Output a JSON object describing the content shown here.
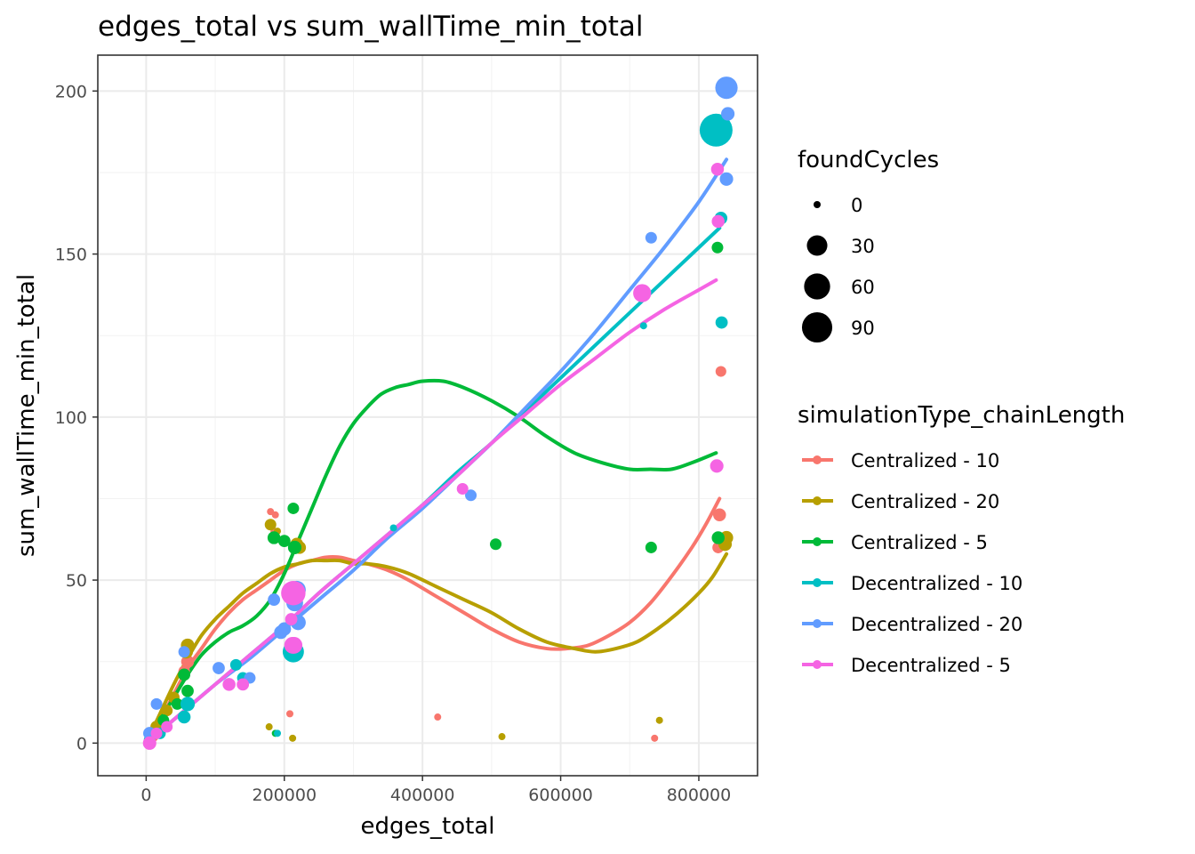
{
  "chart_data": {
    "type": "scatter",
    "title": "edges_total  vs  sum_wallTime_min_total",
    "xlabel": "edges_total",
    "ylabel": "sum_wallTime_min_total",
    "xlim": [
      -70000,
      885000
    ],
    "ylim": [
      -10,
      211
    ],
    "x_ticks": [
      0,
      200000,
      400000,
      600000,
      800000
    ],
    "x_tick_labels": [
      "0",
      "200000",
      "400000",
      "600000",
      "800000"
    ],
    "y_ticks": [
      0,
      50,
      100,
      150,
      200
    ],
    "y_tick_labels": [
      "0",
      "50",
      "100",
      "150",
      "200"
    ],
    "grid": true,
    "legend_position": "right",
    "size_legend": {
      "title": "foundCycles",
      "entries": [
        {
          "label": "0",
          "value": 0
        },
        {
          "label": "30",
          "value": 30
        },
        {
          "label": "60",
          "value": 60
        },
        {
          "label": "90",
          "value": 90
        }
      ]
    },
    "color_legend": {
      "title": "simulationType_chainLength"
    },
    "series": [
      {
        "name": "Centralized - 10",
        "color": "#F8766D",
        "points": [
          [
            180000,
            71
          ],
          [
            187000,
            70
          ],
          [
            208000,
            9
          ],
          [
            422000,
            8
          ],
          [
            736000,
            1.5
          ],
          [
            830000,
            70
          ],
          [
            832000,
            114
          ],
          [
            828000,
            60
          ],
          [
            185000,
            65
          ],
          [
            215000,
            44
          ],
          [
            60000,
            25
          ],
          [
            55000,
            22
          ],
          [
            20000,
            5
          ],
          [
            5000,
            1
          ],
          [
            10000,
            2
          ]
        ],
        "sizes": [
          0,
          0,
          0,
          0,
          0,
          5,
          2,
          3,
          0,
          2,
          5,
          3,
          3,
          2,
          2
        ],
        "trend": [
          [
            0,
            0
          ],
          [
            20000,
            7
          ],
          [
            40000,
            15
          ],
          [
            60000,
            23
          ],
          [
            80000,
            29
          ],
          [
            100000,
            35
          ],
          [
            120000,
            40
          ],
          [
            140000,
            44
          ],
          [
            160000,
            47
          ],
          [
            180000,
            50
          ],
          [
            200000,
            53
          ],
          [
            220000,
            55
          ],
          [
            240000,
            56
          ],
          [
            260000,
            57
          ],
          [
            280000,
            57
          ],
          [
            300000,
            56
          ],
          [
            320000,
            55
          ],
          [
            350000,
            53
          ],
          [
            380000,
            50
          ],
          [
            420000,
            45
          ],
          [
            460000,
            40
          ],
          [
            500000,
            35
          ],
          [
            540000,
            31
          ],
          [
            580000,
            29
          ],
          [
            610000,
            29
          ],
          [
            640000,
            30
          ],
          [
            670000,
            33
          ],
          [
            700000,
            37
          ],
          [
            730000,
            43
          ],
          [
            760000,
            51
          ],
          [
            790000,
            60
          ],
          [
            810000,
            67
          ],
          [
            830000,
            75
          ]
        ]
      },
      {
        "name": "Centralized - 20",
        "color": "#B79F00",
        "points": [
          [
            180000,
            67
          ],
          [
            190000,
            65
          ],
          [
            212000,
            1.5
          ],
          [
            515000,
            2
          ],
          [
            743000,
            7
          ],
          [
            840000,
            63
          ],
          [
            838000,
            61
          ],
          [
            60000,
            30
          ],
          [
            58000,
            28
          ],
          [
            218000,
            61
          ],
          [
            222000,
            60
          ],
          [
            40000,
            14
          ],
          [
            30000,
            10
          ],
          [
            15000,
            5
          ],
          [
            178000,
            5
          ]
        ],
        "sizes": [
          3,
          0,
          0,
          0,
          0,
          6,
          6,
          6,
          6,
          5,
          5,
          3,
          3,
          4,
          0
        ],
        "trend": [
          [
            0,
            0
          ],
          [
            20000,
            9
          ],
          [
            40000,
            18
          ],
          [
            60000,
            26
          ],
          [
            80000,
            33
          ],
          [
            100000,
            38
          ],
          [
            120000,
            42
          ],
          [
            140000,
            46
          ],
          [
            160000,
            49
          ],
          [
            180000,
            52
          ],
          [
            200000,
            54
          ],
          [
            220000,
            55
          ],
          [
            240000,
            56
          ],
          [
            260000,
            56
          ],
          [
            280000,
            56
          ],
          [
            300000,
            55
          ],
          [
            320000,
            55
          ],
          [
            350000,
            54
          ],
          [
            380000,
            52
          ],
          [
            420000,
            48
          ],
          [
            460000,
            44
          ],
          [
            500000,
            40
          ],
          [
            540000,
            35
          ],
          [
            580000,
            31
          ],
          [
            620000,
            29
          ],
          [
            650000,
            28
          ],
          [
            680000,
            29
          ],
          [
            710000,
            31
          ],
          [
            740000,
            35
          ],
          [
            770000,
            40
          ],
          [
            800000,
            46
          ],
          [
            820000,
            51
          ],
          [
            840000,
            58
          ]
        ]
      },
      {
        "name": "Centralized - 5",
        "color": "#00BA38",
        "points": [
          [
            213000,
            72
          ],
          [
            185000,
            63
          ],
          [
            200000,
            62
          ],
          [
            215000,
            60
          ],
          [
            506000,
            61
          ],
          [
            731000,
            60
          ],
          [
            827000,
            152
          ],
          [
            828000,
            63
          ],
          [
            187000,
            3
          ],
          [
            55000,
            21
          ],
          [
            60000,
            16
          ],
          [
            45000,
            12
          ],
          [
            25000,
            7
          ]
        ],
        "sizes": [
          3,
          5,
          4,
          6,
          3,
          3,
          3,
          5,
          0,
          4,
          4,
          3,
          3
        ],
        "trend": [
          [
            0,
            0
          ],
          [
            20000,
            7
          ],
          [
            40000,
            14
          ],
          [
            60000,
            21
          ],
          [
            80000,
            27
          ],
          [
            100000,
            31
          ],
          [
            120000,
            34
          ],
          [
            140000,
            36
          ],
          [
            160000,
            39
          ],
          [
            180000,
            44
          ],
          [
            200000,
            52
          ],
          [
            220000,
            62
          ],
          [
            240000,
            72
          ],
          [
            260000,
            82
          ],
          [
            280000,
            91
          ],
          [
            300000,
            98
          ],
          [
            320000,
            103
          ],
          [
            340000,
            107
          ],
          [
            360000,
            109
          ],
          [
            380000,
            110
          ],
          [
            400000,
            111
          ],
          [
            430000,
            111
          ],
          [
            460000,
            109
          ],
          [
            500000,
            105
          ],
          [
            540000,
            100
          ],
          [
            580000,
            94
          ],
          [
            620000,
            89
          ],
          [
            660000,
            86
          ],
          [
            700000,
            84
          ],
          [
            730000,
            84
          ],
          [
            760000,
            84
          ],
          [
            790000,
            86
          ],
          [
            825000,
            89
          ]
        ]
      },
      {
        "name": "Decentralized - 10",
        "color": "#00BFC4",
        "points": [
          [
            825000,
            188
          ],
          [
            832000,
            161
          ],
          [
            833000,
            129
          ],
          [
            720000,
            128
          ],
          [
            358000,
            66
          ],
          [
            213000,
            28
          ],
          [
            190000,
            3
          ],
          [
            140000,
            20
          ],
          [
            130000,
            24
          ],
          [
            60000,
            12
          ],
          [
            55000,
            8
          ],
          [
            5000,
            1
          ],
          [
            20000,
            3
          ]
        ],
        "sizes": [
          100,
          5,
          4,
          0,
          0,
          30,
          0,
          3,
          3,
          8,
          5,
          3,
          3
        ],
        "trend": [
          [
            0,
            0
          ],
          [
            50000,
            9
          ],
          [
            100000,
            18
          ],
          [
            150000,
            27
          ],
          [
            200000,
            36
          ],
          [
            250000,
            46
          ],
          [
            300000,
            55
          ],
          [
            350000,
            64
          ],
          [
            400000,
            73
          ],
          [
            450000,
            83
          ],
          [
            500000,
            92
          ],
          [
            550000,
            102
          ],
          [
            600000,
            112
          ],
          [
            650000,
            122
          ],
          [
            700000,
            132
          ],
          [
            750000,
            142
          ],
          [
            800000,
            152
          ],
          [
            830000,
            158
          ]
        ]
      },
      {
        "name": "Decentralized - 20",
        "color": "#619CFF",
        "points": [
          [
            840000,
            201
          ],
          [
            842000,
            193
          ],
          [
            840000,
            173
          ],
          [
            731000,
            155
          ],
          [
            470000,
            76
          ],
          [
            218000,
            47
          ],
          [
            215000,
            43
          ],
          [
            220000,
            37
          ],
          [
            200000,
            35
          ],
          [
            195000,
            34
          ],
          [
            185000,
            44
          ],
          [
            105000,
            23
          ],
          [
            15000,
            12
          ],
          [
            5000,
            3
          ],
          [
            55000,
            28
          ],
          [
            150000,
            20
          ],
          [
            210000,
            30
          ]
        ],
        "sizes": [
          35,
          6,
          6,
          3,
          3,
          18,
          14,
          10,
          6,
          6,
          4,
          4,
          3,
          5,
          3,
          3,
          5
        ],
        "trend": [
          [
            0,
            0
          ],
          [
            50000,
            9
          ],
          [
            100000,
            18
          ],
          [
            150000,
            26
          ],
          [
            200000,
            35
          ],
          [
            250000,
            44
          ],
          [
            300000,
            53
          ],
          [
            350000,
            63
          ],
          [
            400000,
            72
          ],
          [
            450000,
            82
          ],
          [
            500000,
            92
          ],
          [
            550000,
            103
          ],
          [
            600000,
            114
          ],
          [
            650000,
            126
          ],
          [
            700000,
            139
          ],
          [
            750000,
            152
          ],
          [
            800000,
            166
          ],
          [
            840000,
            179
          ]
        ]
      },
      {
        "name": "Decentralized - 5",
        "color": "#F564E3",
        "points": [
          [
            827000,
            176
          ],
          [
            828000,
            160
          ],
          [
            718000,
            138
          ],
          [
            826000,
            85
          ],
          [
            458000,
            78
          ],
          [
            213000,
            46
          ],
          [
            212000,
            30
          ],
          [
            214000,
            30
          ],
          [
            210000,
            38
          ],
          [
            120000,
            18
          ],
          [
            140000,
            18
          ],
          [
            5000,
            0
          ],
          [
            15000,
            3
          ],
          [
            30000,
            5
          ]
        ],
        "sizes": [
          5,
          5,
          18,
          6,
          3,
          45,
          14,
          14,
          4,
          5,
          4,
          6,
          3,
          3
        ],
        "trend": [
          [
            0,
            0
          ],
          [
            50000,
            9
          ],
          [
            100000,
            18
          ],
          [
            150000,
            27
          ],
          [
            200000,
            36
          ],
          [
            250000,
            46
          ],
          [
            300000,
            55
          ],
          [
            350000,
            64
          ],
          [
            400000,
            73
          ],
          [
            450000,
            82
          ],
          [
            500000,
            92
          ],
          [
            550000,
            101
          ],
          [
            600000,
            110
          ],
          [
            650000,
            118
          ],
          [
            700000,
            126
          ],
          [
            750000,
            133
          ],
          [
            800000,
            139
          ],
          [
            825000,
            142
          ]
        ]
      }
    ]
  }
}
